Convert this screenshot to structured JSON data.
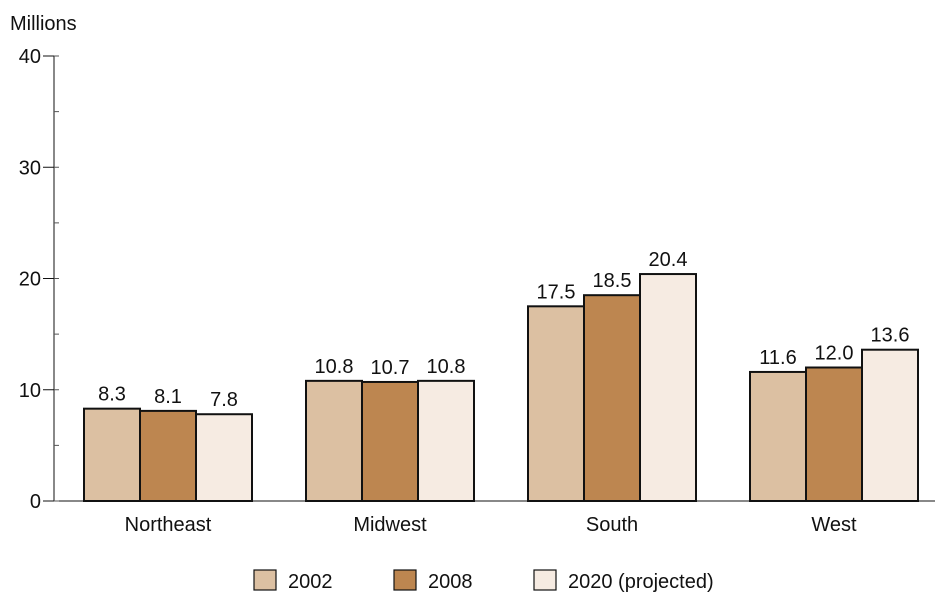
{
  "chart_data": {
    "type": "bar",
    "unit_label": "Millions",
    "categories": [
      "Northeast",
      "Midwest",
      "South",
      "West"
    ],
    "series": [
      {
        "name": "2002",
        "values": [
          8.3,
          10.8,
          17.5,
          11.6
        ],
        "labels": [
          "8.3",
          "10.8",
          "17.5",
          "11.6"
        ],
        "color": "#dcc0a2"
      },
      {
        "name": "2008",
        "values": [
          8.1,
          10.7,
          18.5,
          12.0
        ],
        "labels": [
          "8.1",
          "10.7",
          "18.5",
          "12.0"
        ],
        "color": "#bd8650"
      },
      {
        "name": "2020 (projected)",
        "values": [
          7.8,
          10.8,
          20.4,
          13.6
        ],
        "labels": [
          "7.8",
          "10.8",
          "20.4",
          "13.6"
        ],
        "color": "#f6ebe2"
      }
    ],
    "ylim": [
      0,
      40
    ],
    "y_ticks": [
      "0",
      "10",
      "20",
      "30",
      "40"
    ],
    "y_minor_tick_step": 5,
    "grid": false,
    "legend_position": "bottom-center",
    "bar_outline_color": "#111111"
  }
}
